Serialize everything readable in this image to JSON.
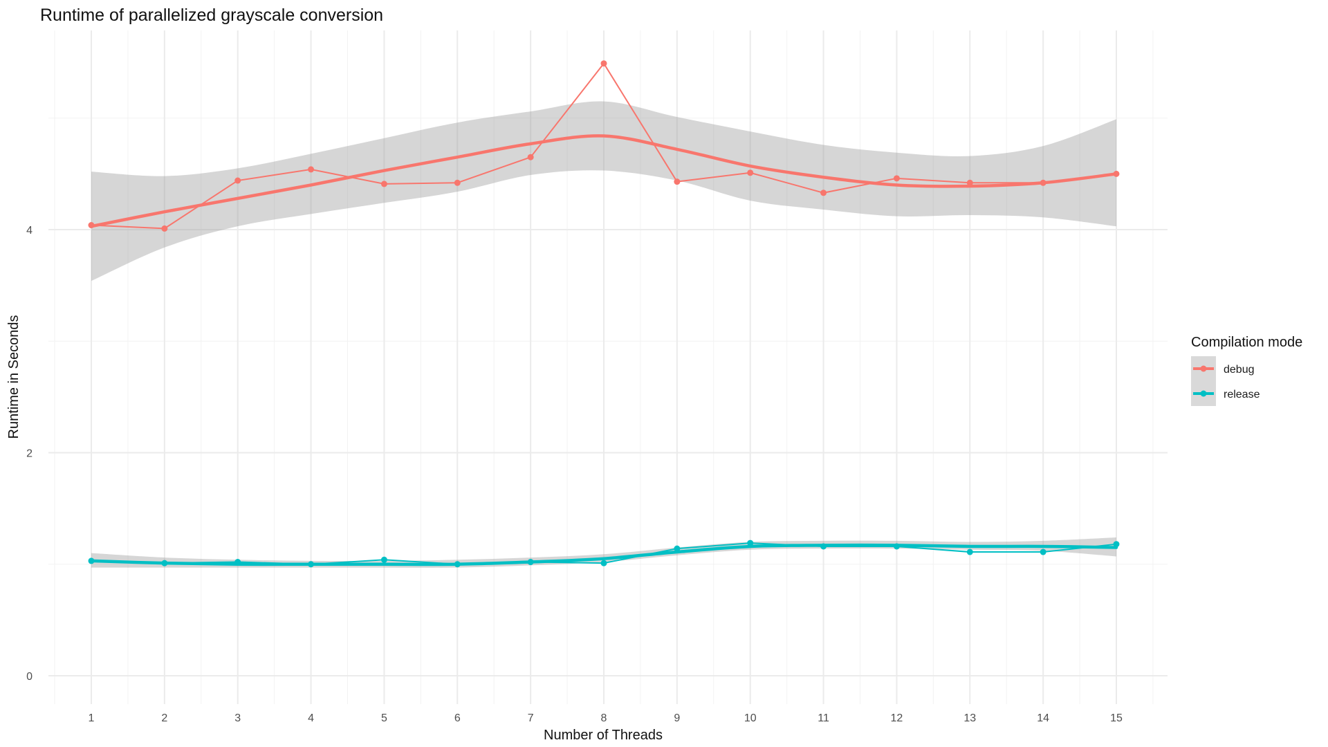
{
  "chart_data": {
    "type": "line",
    "title": "Runtime of parallelized grayscale conversion",
    "xlabel": "Number of Threads",
    "ylabel": "Runtime in Seconds",
    "x": [
      1,
      2,
      3,
      4,
      5,
      6,
      7,
      8,
      9,
      10,
      11,
      12,
      13,
      14,
      15
    ],
    "x_tick_labels": [
      "1",
      "2",
      "3",
      "4",
      "5",
      "6",
      "7",
      "8",
      "9",
      "10",
      "11",
      "12",
      "13",
      "14",
      "15"
    ],
    "y_tick_values": [
      0,
      2,
      4
    ],
    "y_tick_labels": [
      "0",
      "2",
      "4"
    ],
    "xlim": [
      0.5,
      15.5
    ],
    "ylim": [
      -0.2,
      5.8
    ],
    "grid": true,
    "legend": {
      "title": "Compilation mode",
      "position": "right",
      "entries": [
        "debug",
        "release"
      ]
    },
    "series": [
      {
        "name": "debug",
        "color": "#F8766D",
        "values": [
          4.04,
          4.01,
          4.44,
          4.54,
          4.41,
          4.42,
          4.65,
          5.49,
          4.43,
          4.51,
          4.33,
          4.46,
          4.42,
          4.42,
          4.5
        ],
        "smooth": [
          4.03,
          4.16,
          4.28,
          4.4,
          4.53,
          4.65,
          4.77,
          4.84,
          4.72,
          4.57,
          4.47,
          4.4,
          4.39,
          4.42,
          4.5
        ],
        "smooth_lower": [
          3.54,
          3.84,
          4.03,
          4.14,
          4.24,
          4.34,
          4.49,
          4.53,
          4.44,
          4.26,
          4.18,
          4.12,
          4.13,
          4.11,
          4.03
        ],
        "smooth_upper": [
          4.52,
          4.48,
          4.55,
          4.68,
          4.82,
          4.96,
          5.06,
          5.15,
          5.01,
          4.88,
          4.76,
          4.69,
          4.66,
          4.75,
          4.99
        ]
      },
      {
        "name": "release",
        "color": "#00BFC4",
        "values": [
          1.03,
          1.01,
          1.02,
          1.0,
          1.04,
          1.0,
          1.02,
          1.01,
          1.14,
          1.19,
          1.16,
          1.16,
          1.11,
          1.11,
          1.18
        ],
        "smooth": [
          1.03,
          1.01,
          1.0,
          1.0,
          1.0,
          1.0,
          1.02,
          1.05,
          1.11,
          1.16,
          1.17,
          1.17,
          1.16,
          1.16,
          1.15
        ],
        "smooth_lower": [
          0.97,
          0.97,
          0.97,
          0.97,
          0.97,
          0.97,
          0.99,
          1.02,
          1.08,
          1.13,
          1.14,
          1.14,
          1.13,
          1.12,
          1.07
        ],
        "smooth_upper": [
          1.1,
          1.06,
          1.04,
          1.03,
          1.03,
          1.04,
          1.06,
          1.09,
          1.15,
          1.2,
          1.21,
          1.21,
          1.2,
          1.21,
          1.24
        ]
      }
    ]
  }
}
